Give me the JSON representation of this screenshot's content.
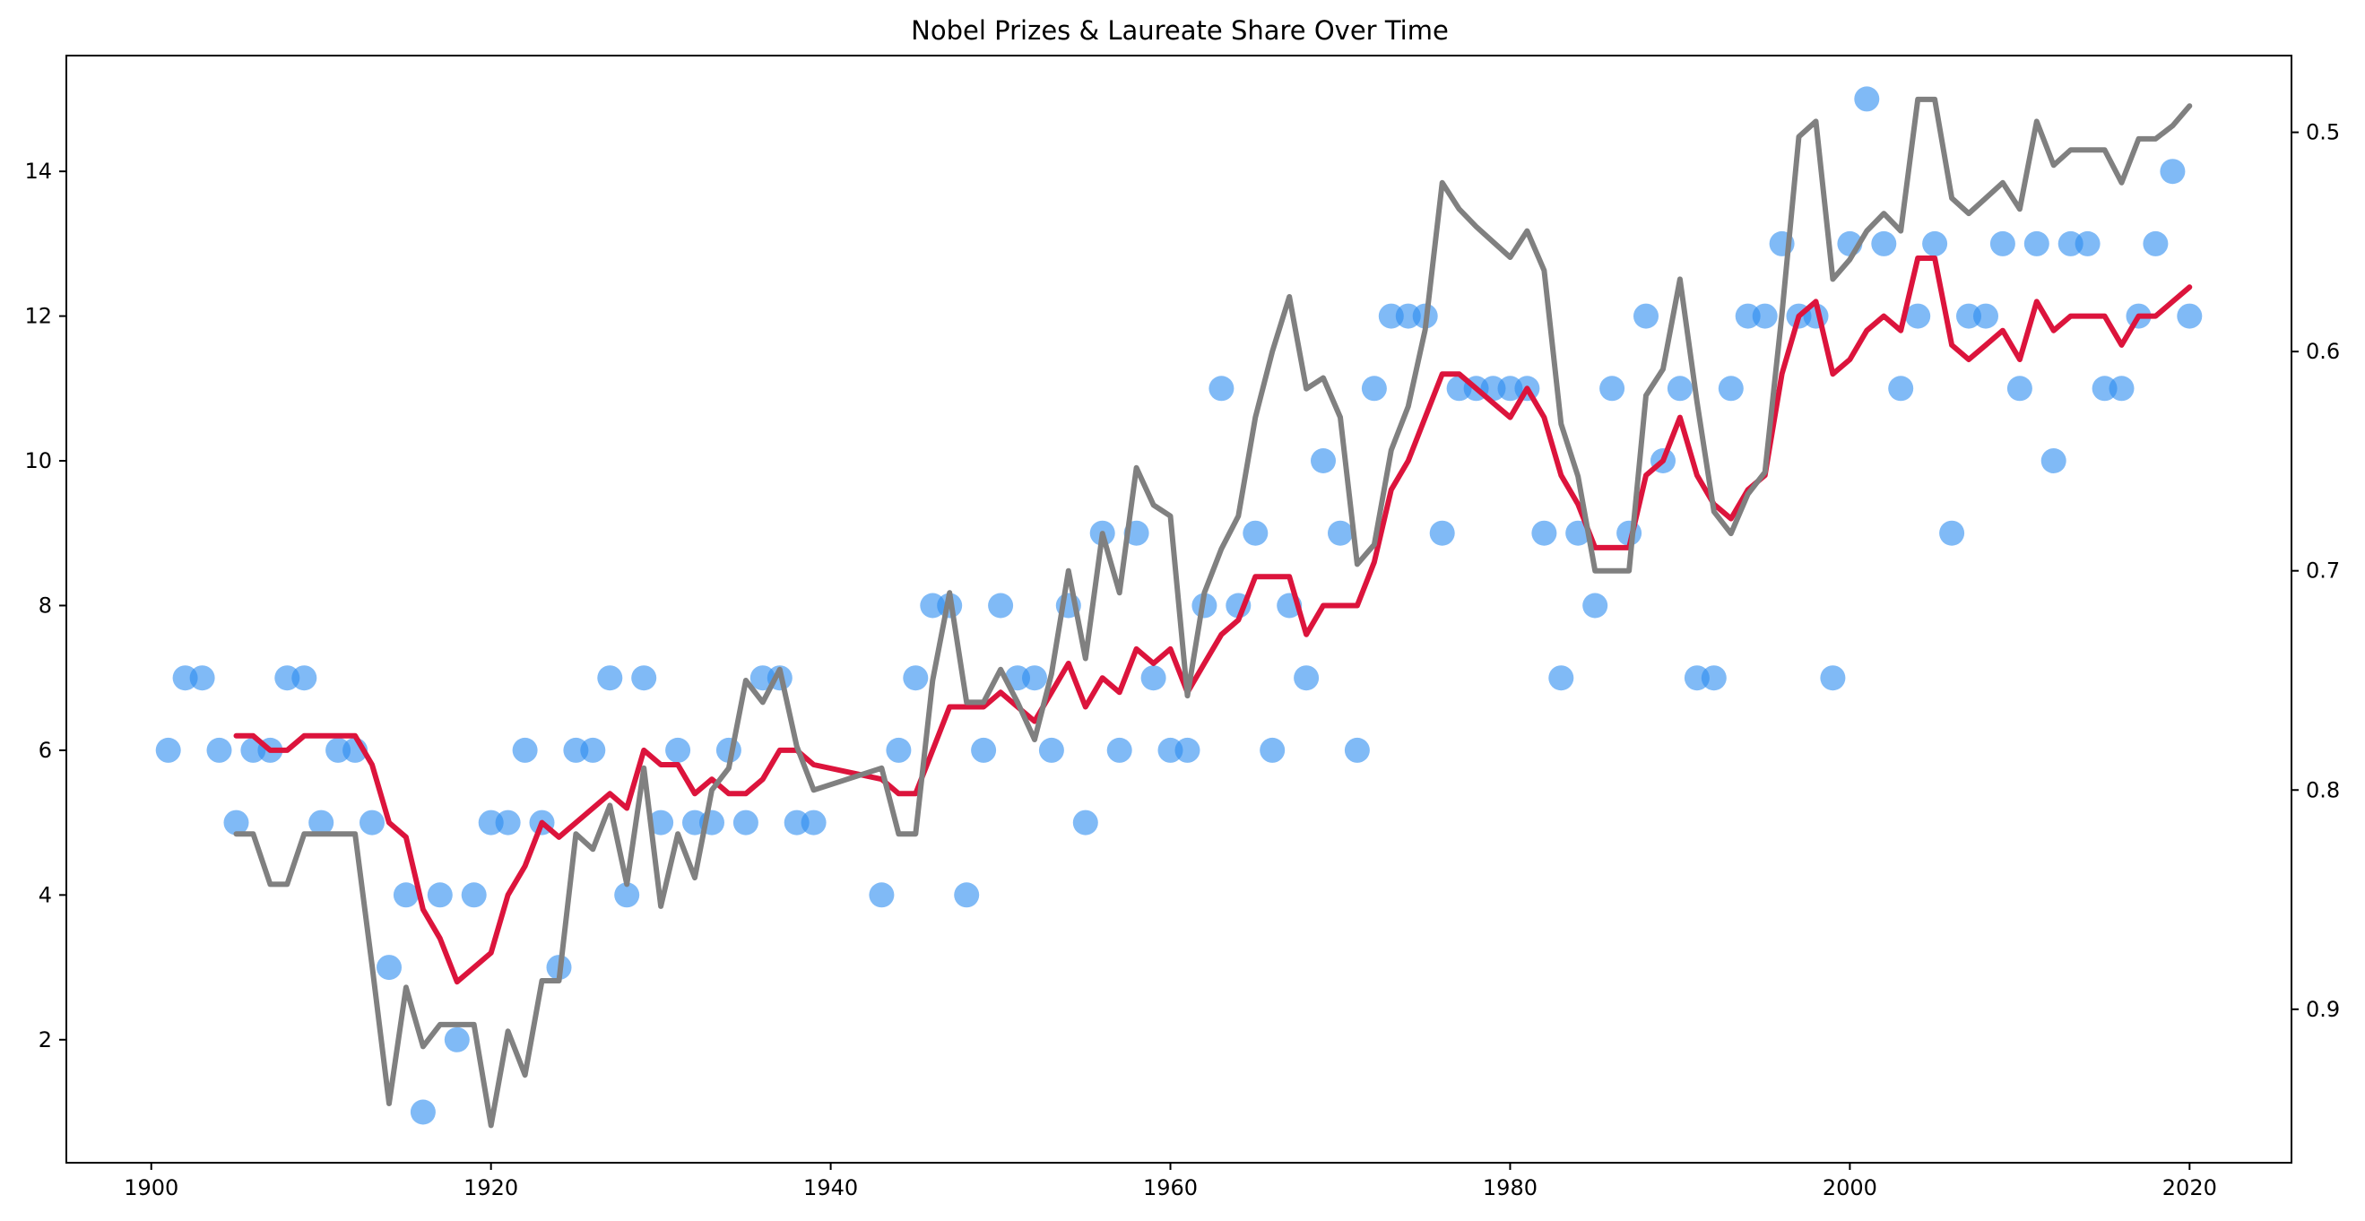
{
  "chart_data": {
    "type": "line",
    "title": "Nobel Prizes & Laureate Share Over Time",
    "xlabel": "",
    "ylabel": "",
    "y2label": "",
    "xlim": [
      1895,
      2026
    ],
    "ylim": [
      0.3,
      15.6
    ],
    "y2lim": [
      0.97,
      0.465
    ],
    "y2_inverted": true,
    "x_ticks": [
      1900,
      1920,
      1940,
      1960,
      1980,
      2000,
      2020
    ],
    "y_ticks": [
      2,
      4,
      6,
      8,
      10,
      12,
      14
    ],
    "y2_ticks": [
      0.5,
      0.6,
      0.7,
      0.8,
      0.9
    ],
    "grid": false,
    "colors": {
      "scatter": "#2b8cf0",
      "rolling_prizes": "#dc143c",
      "rolling_share": "#808080"
    },
    "scatter": {
      "x": [
        1901,
        1902,
        1903,
        1904,
        1905,
        1906,
        1907,
        1908,
        1909,
        1910,
        1911,
        1912,
        1913,
        1914,
        1915,
        1916,
        1917,
        1918,
        1919,
        1920,
        1921,
        1922,
        1923,
        1924,
        1925,
        1926,
        1927,
        1928,
        1929,
        1930,
        1931,
        1932,
        1933,
        1934,
        1935,
        1936,
        1937,
        1938,
        1939,
        1943,
        1944,
        1945,
        1946,
        1947,
        1948,
        1949,
        1950,
        1951,
        1952,
        1953,
        1954,
        1955,
        1956,
        1957,
        1958,
        1959,
        1960,
        1961,
        1962,
        1963,
        1964,
        1965,
        1966,
        1967,
        1968,
        1969,
        1970,
        1971,
        1972,
        1973,
        1974,
        1975,
        1976,
        1977,
        1978,
        1979,
        1980,
        1981,
        1982,
        1983,
        1984,
        1985,
        1986,
        1987,
        1988,
        1989,
        1990,
        1991,
        1992,
        1993,
        1994,
        1995,
        1996,
        1997,
        1998,
        1999,
        2000,
        2001,
        2002,
        2003,
        2004,
        2005,
        2006,
        2007,
        2008,
        2009,
        2010,
        2011,
        2012,
        2013,
        2014,
        2015,
        2016,
        2017,
        2018,
        2019,
        2020
      ],
      "y": [
        6,
        7,
        7,
        6,
        5,
        6,
        6,
        7,
        7,
        5,
        6,
        6,
        5,
        3,
        4,
        1,
        4,
        2,
        4,
        5,
        5,
        6,
        5,
        3,
        6,
        6,
        7,
        4,
        7,
        5,
        6,
        5,
        5,
        6,
        5,
        7,
        7,
        5,
        5,
        4,
        6,
        7,
        8,
        8,
        4,
        6,
        8,
        7,
        7,
        6,
        8,
        5,
        9,
        6,
        9,
        7,
        6,
        6,
        8,
        11,
        8,
        9,
        6,
        8,
        7,
        10,
        9,
        6,
        11,
        12,
        12,
        12,
        9,
        11,
        11,
        11,
        11,
        11,
        9,
        7,
        9,
        8,
        11,
        9,
        12,
        10,
        11,
        7,
        7,
        11,
        12,
        12,
        13,
        12,
        12,
        7,
        13,
        15,
        13,
        11,
        12,
        13,
        9,
        12,
        12,
        13,
        11,
        13,
        10,
        13,
        13,
        11,
        11,
        12,
        13,
        14,
        12
      ]
    },
    "series": [
      {
        "axis": "left",
        "x": [
          1905,
          1906,
          1907,
          1908,
          1909,
          1910,
          1911,
          1912,
          1913,
          1914,
          1915,
          1916,
          1917,
          1918,
          1919,
          1920,
          1921,
          1922,
          1923,
          1924,
          1925,
          1926,
          1927,
          1928,
          1929,
          1930,
          1931,
          1932,
          1933,
          1934,
          1935,
          1936,
          1937,
          1938,
          1939,
          1943,
          1944,
          1945,
          1946,
          1947,
          1948,
          1949,
          1950,
          1951,
          1952,
          1953,
          1954,
          1955,
          1956,
          1957,
          1958,
          1959,
          1960,
          1961,
          1962,
          1963,
          1964,
          1965,
          1966,
          1967,
          1968,
          1969,
          1970,
          1971,
          1972,
          1973,
          1974,
          1975,
          1976,
          1977,
          1978,
          1979,
          1980,
          1981,
          1982,
          1983,
          1984,
          1985,
          1986,
          1987,
          1988,
          1989,
          1990,
          1991,
          1992,
          1993,
          1994,
          1995,
          1996,
          1997,
          1998,
          1999,
          2000,
          2001,
          2002,
          2003,
          2004,
          2005,
          2006,
          2007,
          2008,
          2009,
          2010,
          2011,
          2012,
          2013,
          2014,
          2015,
          2016,
          2017,
          2018,
          2019,
          2020
        ],
        "y": [
          6.2,
          6.2,
          6.0,
          6.0,
          6.2,
          6.2,
          6.2,
          6.2,
          5.8,
          5.0,
          4.8,
          3.8,
          3.4,
          2.8,
          3.0,
          3.2,
          4.0,
          4.4,
          5.0,
          4.8,
          5.0,
          5.2,
          5.4,
          5.2,
          6.0,
          5.8,
          5.8,
          5.4,
          5.6,
          5.4,
          5.4,
          5.6,
          6.0,
          6.0,
          5.8,
          5.6,
          5.4,
          5.4,
          6.0,
          6.6,
          6.6,
          6.6,
          6.8,
          6.6,
          6.4,
          6.8,
          7.2,
          6.6,
          7.0,
          6.8,
          7.4,
          7.2,
          7.4,
          6.8,
          7.2,
          7.6,
          7.8,
          8.4,
          8.4,
          8.4,
          7.6,
          8.0,
          8.0,
          8.0,
          8.6,
          9.6,
          10.0,
          10.6,
          11.2,
          11.2,
          11.0,
          10.8,
          10.6,
          11.0,
          10.6,
          9.8,
          9.4,
          8.8,
          8.8,
          8.8,
          9.8,
          10.0,
          10.6,
          9.8,
          9.4,
          9.2,
          9.6,
          9.8,
          11.2,
          12.0,
          12.2,
          11.2,
          11.4,
          11.8,
          12.0,
          11.8,
          12.8,
          12.8,
          11.6,
          11.4,
          11.6,
          11.8,
          11.4,
          12.2,
          11.8,
          12.0,
          12.0,
          12.0,
          11.6,
          12.0,
          12.0,
          12.2,
          12.4
        ]
      },
      {
        "axis": "right",
        "x": [
          1905,
          1906,
          1907,
          1908,
          1909,
          1910,
          1911,
          1912,
          1913,
          1914,
          1915,
          1916,
          1917,
          1918,
          1919,
          1920,
          1921,
          1922,
          1923,
          1924,
          1925,
          1926,
          1927,
          1928,
          1929,
          1930,
          1931,
          1932,
          1933,
          1934,
          1935,
          1936,
          1937,
          1938,
          1939,
          1943,
          1944,
          1945,
          1946,
          1947,
          1948,
          1949,
          1950,
          1951,
          1952,
          1953,
          1954,
          1955,
          1956,
          1957,
          1958,
          1959,
          1960,
          1961,
          1962,
          1963,
          1964,
          1965,
          1966,
          1967,
          1968,
          1969,
          1970,
          1971,
          1972,
          1973,
          1974,
          1975,
          1976,
          1977,
          1978,
          1979,
          1980,
          1981,
          1982,
          1983,
          1984,
          1985,
          1986,
          1987,
          1988,
          1989,
          1990,
          1991,
          1992,
          1993,
          1994,
          1995,
          1996,
          1997,
          1998,
          1999,
          2000,
          2001,
          2002,
          2003,
          2004,
          2005,
          2006,
          2007,
          2008,
          2009,
          2010,
          2011,
          2012,
          2013,
          2014,
          2015,
          2016,
          2017,
          2018,
          2019,
          2020
        ],
        "y": [
          0.82,
          0.82,
          0.843,
          0.843,
          0.82,
          0.82,
          0.82,
          0.82,
          0.88,
          0.943,
          0.89,
          0.917,
          0.907,
          0.907,
          0.907,
          0.953,
          0.91,
          0.93,
          0.887,
          0.887,
          0.82,
          0.827,
          0.807,
          0.843,
          0.79,
          0.853,
          0.82,
          0.84,
          0.8,
          0.79,
          0.75,
          0.76,
          0.745,
          0.78,
          0.8,
          0.79,
          0.82,
          0.82,
          0.75,
          0.71,
          0.76,
          0.76,
          0.745,
          0.76,
          0.777,
          0.747,
          0.7,
          0.74,
          0.683,
          0.71,
          0.653,
          0.67,
          0.675,
          0.757,
          0.71,
          0.69,
          0.675,
          0.63,
          0.6,
          0.575,
          0.617,
          0.612,
          0.63,
          0.697,
          0.688,
          0.645,
          0.625,
          0.59,
          0.523,
          0.535,
          0.543,
          0.55,
          0.557,
          0.545,
          0.563,
          0.633,
          0.657,
          0.7,
          0.7,
          0.7,
          0.62,
          0.608,
          0.567,
          0.623,
          0.673,
          0.683,
          0.665,
          0.655,
          0.583,
          0.502,
          0.495,
          0.567,
          0.558,
          0.545,
          0.537,
          0.545,
          0.485,
          0.485,
          0.53,
          0.537,
          0.53,
          0.523,
          0.535,
          0.495,
          0.515,
          0.508,
          0.508,
          0.508,
          0.523,
          0.503,
          0.503,
          0.497,
          0.488
        ]
      }
    ]
  }
}
